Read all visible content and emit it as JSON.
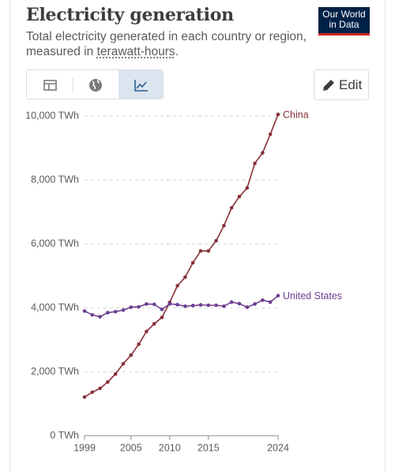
{
  "logo": [
    "Our World",
    "in Data"
  ],
  "edit_label": "Edit",
  "chart_data": {
    "type": "line",
    "title": "Electricity generation",
    "subtitle": [
      "Total electricity generated in each country or region,",
      "measured in",
      "terawatt-hours",
      "."
    ],
    "x": [
      1999,
      2000,
      2001,
      2002,
      2003,
      2004,
      2005,
      2006,
      2007,
      2008,
      2009,
      2010,
      2011,
      2012,
      2013,
      2014,
      2015,
      2016,
      2017,
      2018,
      2019,
      2020,
      2021,
      2022,
      2023,
      2024
    ],
    "series": [
      {
        "name": "China",
        "color": "#883039",
        "values": [
          1210,
          1360,
          1480,
          1680,
          1930,
          2250,
          2520,
          2860,
          3260,
          3500,
          3700,
          4170,
          4690,
          4960,
          5410,
          5780,
          5780,
          6100,
          6570,
          7130,
          7480,
          7750,
          8520,
          8850,
          9430,
          10050
        ]
      },
      {
        "name": "United States",
        "color": "#6d3e91",
        "values": [
          3900,
          3780,
          3720,
          3850,
          3880,
          3930,
          4020,
          4030,
          4120,
          4110,
          3950,
          4125,
          4100,
          4050,
          4070,
          4090,
          4080,
          4080,
          4050,
          4180,
          4130,
          4020,
          4120,
          4240,
          4180,
          4380
        ]
      }
    ],
    "xlim": [
      1999,
      2024
    ],
    "xticks": [
      1999,
      2005,
      2010,
      2015,
      2024
    ],
    "ylim": [
      0,
      10000
    ],
    "yticks": [
      {
        "value": 0,
        "label": "0 TWh"
      },
      {
        "value": 2000,
        "label": "2,000 TWh"
      },
      {
        "value": 4000,
        "label": "4,000 TWh"
      },
      {
        "value": 6000,
        "label": "6,000 TWh"
      },
      {
        "value": 8000,
        "label": "8,000 TWh"
      },
      {
        "value": 10000,
        "label": "10,000 TWh"
      }
    ],
    "grid": true
  }
}
